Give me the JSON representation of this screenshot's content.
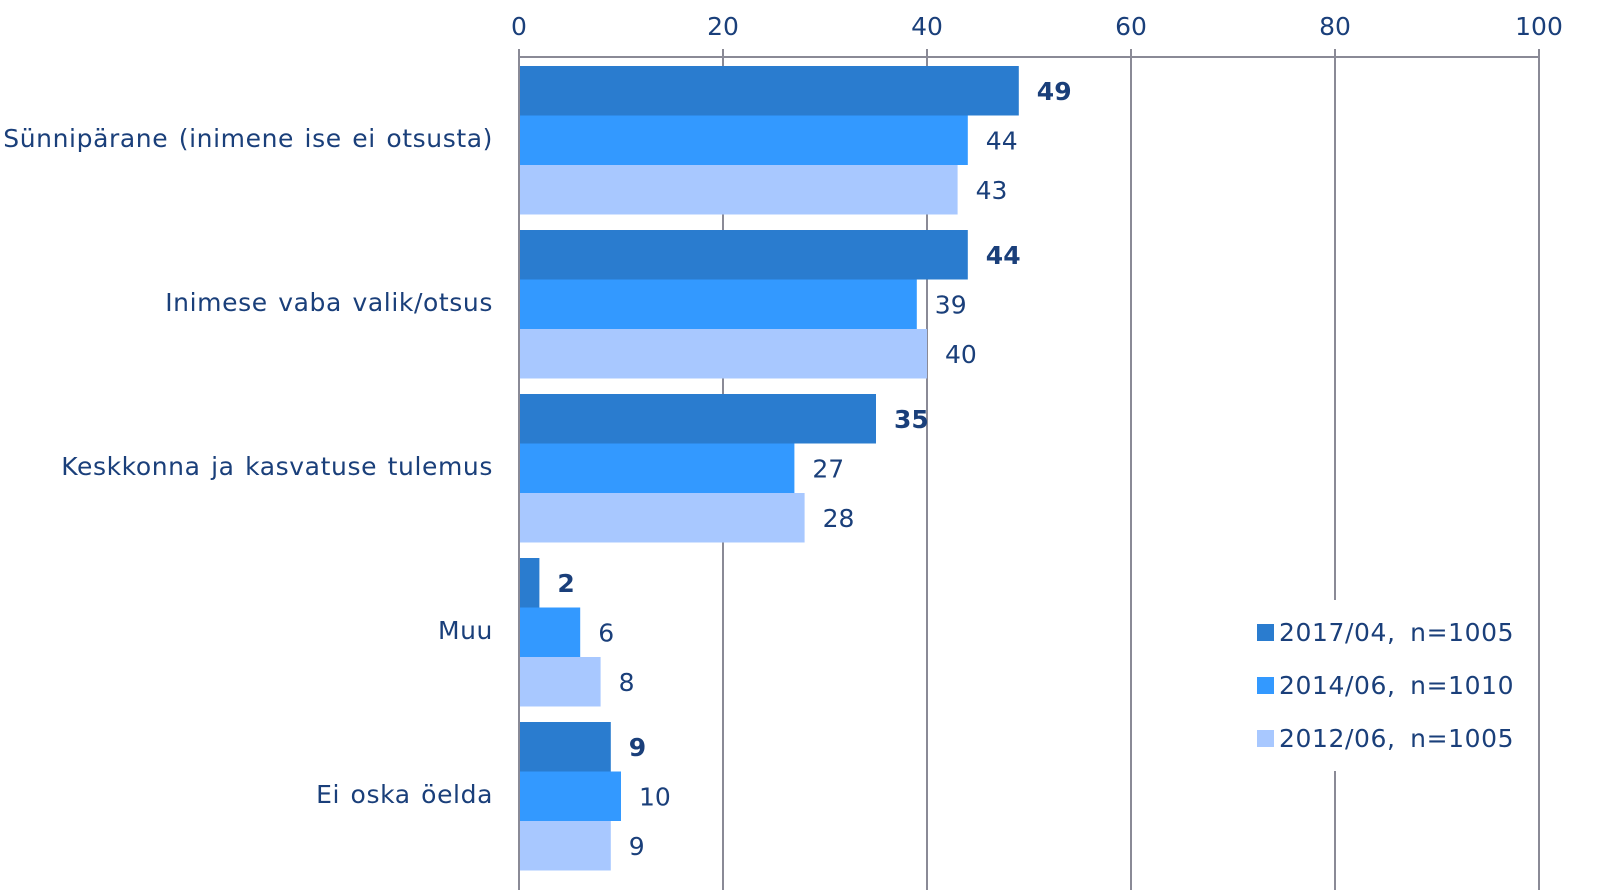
{
  "chart_data": {
    "type": "bar",
    "orientation": "horizontal",
    "categories": [
      "Sünnipärane  (inimene ise ei otsusta)",
      "Inimese vaba valik/otsus",
      "Keskkonna ja kasvatuse tulemus",
      "Muu",
      "Ei oska öelda"
    ],
    "series": [
      {
        "name": "2017/04,  n=1005",
        "color": "#2a7ccf",
        "bold_labels": true,
        "values": [
          49,
          44,
          35,
          2,
          9
        ]
      },
      {
        "name": "2014/06,  n=1010",
        "color": "#3399ff",
        "bold_labels": false,
        "values": [
          44,
          39,
          27,
          6,
          10
        ]
      },
      {
        "name": "2012/06,  n=1005",
        "color": "#a8c8ff",
        "bold_labels": false,
        "values": [
          43,
          40,
          28,
          8,
          9
        ]
      }
    ],
    "xlim": [
      0,
      100
    ],
    "xticks": [
      "0",
      "20",
      "40",
      "60",
      "80",
      "100"
    ],
    "x_axis_position": "top",
    "grid": true,
    "legend_position": "bottom-right",
    "title": "",
    "xlabel": "",
    "ylabel": "",
    "colors": {
      "text": "#1a3f7a",
      "grid": "#8a8a96"
    }
  }
}
